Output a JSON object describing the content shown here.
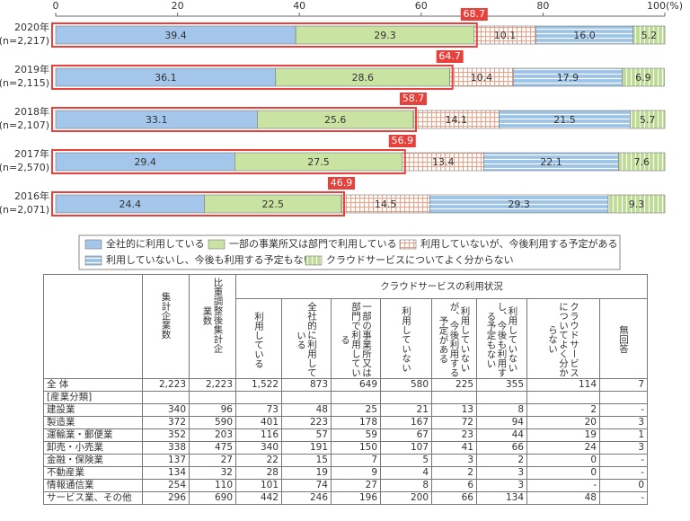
{
  "chart_data": {
    "type": "stacked-bar",
    "orientation": "horizontal",
    "categories": [
      "2020年",
      "2019年",
      "2018年",
      "2017年",
      "2016年"
    ],
    "category_notes": [
      "(n=2,217)",
      "(n=2,115)",
      "(n=2,107)",
      "(n=2,570)",
      "(n=2,071)"
    ],
    "xlim": [
      0,
      100
    ],
    "xticks": [
      0,
      20,
      40,
      60,
      {
        "value": 80,
        "label": "80"
      },
      {
        "value": 100,
        "label": "100(%)"
      }
    ],
    "series": [
      {
        "name": "全社的に利用している",
        "color": "#a3c6ea",
        "values": [
          39.4,
          36.1,
          33.1,
          29.4,
          24.4
        ]
      },
      {
        "name": "一部の事業所又は部門で利用している",
        "color": "#c9e3a2",
        "values": [
          29.3,
          28.6,
          25.6,
          27.5,
          22.5
        ]
      },
      {
        "name": "利用していないが、今後利用する予定がある",
        "color": "#e8a58c",
        "pattern": "grid",
        "values": [
          10.1,
          10.4,
          14.1,
          13.4,
          14.5
        ]
      },
      {
        "name": "利用していないし、今後も利用する予定もない",
        "color": "#9cc3e8",
        "pattern": "hlines",
        "values": [
          16.0,
          17.9,
          21.5,
          22.1,
          29.3
        ],
        "value_labels": [
          "16.0",
          "17.9",
          "21.5",
          "22.1",
          "29.3"
        ]
      },
      {
        "name": "クラウドサービスについてよく分からない",
        "color": "#bddc93",
        "pattern": "vlines",
        "values": [
          5.2,
          6.9,
          5.7,
          7.6,
          9.3
        ]
      }
    ],
    "highlight_totals": [
      68.7,
      64.7,
      58.7,
      56.9,
      46.9
    ],
    "highlight_color": "#e8413c"
  },
  "table": {
    "header_group": "クラウドサービスの利用状況",
    "columns": [
      "集計企業数",
      "比重調整後集計企業数",
      "利用している",
      "全社的に利用している",
      "一部の事業所又は部門で利用している",
      "利用していない",
      "利用していないが、今後利用する予定がある",
      "利用していないし、今後も利用する予定もない",
      "クラウドサービスについてよく分からない",
      "無回答"
    ],
    "rows": [
      {
        "label": "全 体",
        "cells": [
          "2,223",
          "2,223",
          "1,522",
          "873",
          "649",
          "580",
          "225",
          "355",
          "114",
          "7"
        ]
      },
      {
        "label": "[産業分類]"
      },
      {
        "label": "建設業",
        "cells": [
          "340",
          "96",
          "73",
          "48",
          "25",
          "21",
          "13",
          "8",
          "2",
          "-"
        ]
      },
      {
        "label": "製造業",
        "cells": [
          "372",
          "590",
          "401",
          "223",
          "178",
          "167",
          "72",
          "94",
          "20",
          "3"
        ]
      },
      {
        "label": "運輸業・郵便業",
        "cells": [
          "352",
          "203",
          "116",
          "57",
          "59",
          "67",
          "23",
          "44",
          "19",
          "1"
        ]
      },
      {
        "label": "卸売・小売業",
        "cells": [
          "338",
          "475",
          "340",
          "191",
          "150",
          "107",
          "41",
          "66",
          "24",
          "3"
        ]
      },
      {
        "label": "金融・保険業",
        "cells": [
          "137",
          "27",
          "22",
          "15",
          "7",
          "5",
          "3",
          "2",
          "0",
          "-"
        ]
      },
      {
        "label": "不動産業",
        "cells": [
          "134",
          "32",
          "28",
          "19",
          "9",
          "4",
          "2",
          "3",
          "0",
          "-"
        ]
      },
      {
        "label": "情報通信業",
        "cells": [
          "254",
          "110",
          "101",
          "74",
          "27",
          "8",
          "6",
          "3",
          "-",
          "0"
        ]
      },
      {
        "label": "サービス業、その他",
        "cells": [
          "296",
          "690",
          "442",
          "246",
          "196",
          "200",
          "66",
          "134",
          "48",
          "-"
        ]
      }
    ]
  }
}
